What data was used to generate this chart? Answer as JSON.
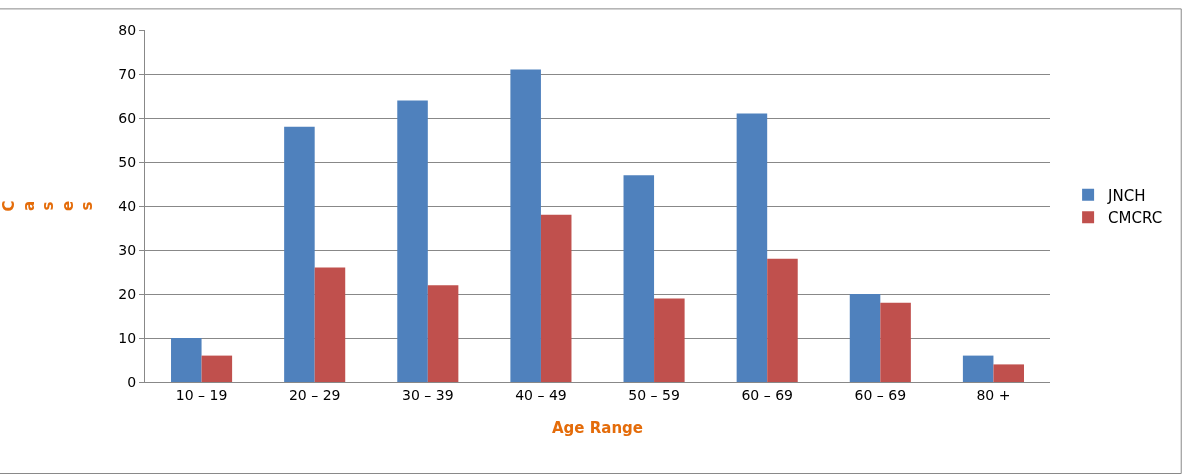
{
  "chart_data": {
    "type": "bar",
    "xlabel": "Age Range",
    "ylabel": "Cases",
    "categories": [
      "10 – 19",
      "20 – 29",
      "30 – 39",
      "40 – 49",
      "50 – 59",
      "60 – 69",
      "60 – 69",
      "80 +"
    ],
    "series": [
      {
        "name": "JNCH",
        "color": "#4f81bd",
        "values": [
          10,
          58,
          64,
          71,
          47,
          61,
          20,
          6
        ]
      },
      {
        "name": "CMCRC",
        "color": "#c0504d",
        "values": [
          6,
          26,
          22,
          38,
          19,
          28,
          18,
          4
        ]
      }
    ],
    "ylim": [
      0,
      80
    ],
    "yticks": [
      0,
      10,
      20,
      30,
      40,
      50,
      60,
      70,
      80
    ],
    "grid": "y",
    "legend": "right"
  }
}
